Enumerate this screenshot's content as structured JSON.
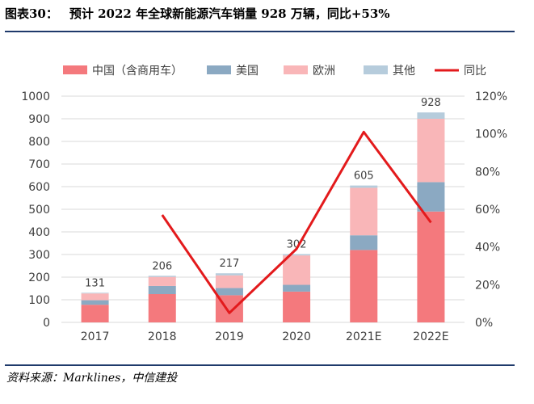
{
  "figure": {
    "number": "图表30：",
    "title": "预计 2022 年全球新能源汽车销量 928 万辆，同比+53%",
    "source": "资料来源：Marklines，中信建投"
  },
  "chart_data": {
    "type": "bar",
    "stacked": true,
    "categories": [
      "2017",
      "2018",
      "2019",
      "2020",
      "2021E",
      "2022E"
    ],
    "series": [
      {
        "name": "中国（含商用车）",
        "color": "#f4797d",
        "values": [
          78,
          125,
          120,
          136,
          320,
          490
        ]
      },
      {
        "name": "美国",
        "color": "#8ba9c2",
        "values": [
          20,
          36,
          32,
          30,
          65,
          130
        ]
      },
      {
        "name": "欧洲",
        "color": "#f9b6b8",
        "values": [
          30,
          40,
          56,
          130,
          210,
          280
        ]
      },
      {
        "name": "其他",
        "color": "#b6ccdc",
        "values": [
          3,
          5,
          9,
          6,
          10,
          28
        ]
      }
    ],
    "totals": [
      131,
      206,
      217,
      302,
      605,
      928
    ],
    "total_labels": [
      "131",
      "206",
      "217",
      "302",
      "605",
      "928"
    ],
    "line": {
      "name": "同比",
      "color": "#e31a1c",
      "axis": "right",
      "values": [
        null,
        57,
        5,
        39,
        101,
        53
      ]
    },
    "y_left": {
      "min": 0,
      "max": 1000,
      "ticks": [
        0,
        100,
        200,
        300,
        400,
        500,
        600,
        700,
        800,
        900,
        1000
      ]
    },
    "y_right": {
      "min": 0,
      "max": 120,
      "ticks": [
        "0%",
        "20%",
        "40%",
        "60%",
        "80%",
        "100%",
        "120%"
      ]
    },
    "grid": true,
    "legend_position": "top"
  }
}
